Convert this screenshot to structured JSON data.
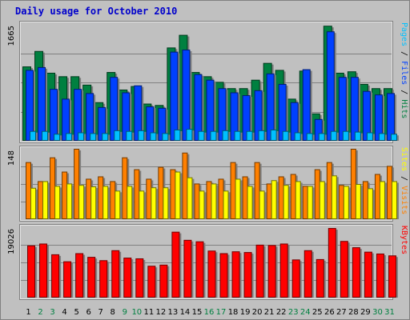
{
  "chart_data": {
    "type": "bar",
    "title": "Daily usage for October 2010",
    "categories": [
      "1",
      "2",
      "3",
      "4",
      "5",
      "6",
      "7",
      "8",
      "9",
      "10",
      "11",
      "12",
      "13",
      "14",
      "15",
      "16",
      "17",
      "18",
      "19",
      "20",
      "21",
      "22",
      "23",
      "24",
      "25",
      "26",
      "27",
      "28",
      "29",
      "30",
      "31"
    ],
    "weekend_days": [
      "2",
      "3",
      "9",
      "10",
      "16",
      "17",
      "23",
      "24",
      "30",
      "31"
    ],
    "panels": [
      {
        "name": "hits-files-pages",
        "max_label": "1665",
        "ylim": [
          0,
          1665
        ],
        "legend": [
          "Pages",
          "Files",
          "Hits"
        ],
        "series": [
          {
            "name": "Hits",
            "color": "#008040",
            "values": [
              1060,
              1280,
              970,
              920,
              920,
              800,
              550,
              980,
              730,
              780,
              530,
              510,
              1330,
              1510,
              980,
              920,
              840,
              750,
              750,
              870,
              1110,
              1010,
              600,
              1000,
              390,
              1640,
              970,
              990,
              810,
              750,
              750
            ]
          },
          {
            "name": "Files",
            "color": "#0040ff",
            "values": [
              1010,
              1050,
              740,
              600,
              740,
              680,
              480,
              910,
              690,
              790,
              490,
              470,
              1270,
              1300,
              950,
              870,
              750,
              690,
              650,
              720,
              960,
              810,
              550,
              1020,
              310,
              1560,
              910,
              910,
              710,
              660,
              680
            ]
          },
          {
            "name": "Pages",
            "color": "#00c0ff",
            "values": [
              140,
              140,
              100,
              110,
              120,
              110,
              110,
              150,
              140,
              150,
              120,
              110,
              160,
              170,
              140,
              140,
              150,
              140,
              140,
              150,
              160,
              140,
              120,
              110,
              110,
              140,
              140,
              130,
              120,
              110,
              100
            ]
          }
        ]
      },
      {
        "name": "visits-sites",
        "max_label": "148",
        "ylim": [
          0,
          148
        ],
        "legend": [
          "Sites",
          "Visits"
        ],
        "series": [
          {
            "name": "Visits",
            "color": "#ff8000",
            "values": [
              120,
              80,
              130,
              100,
              148,
              85,
              90,
              80,
              130,
              105,
              85,
              110,
              105,
              140,
              75,
              80,
              85,
              120,
              90,
              120,
              75,
              90,
              95,
              70,
              105,
              120,
              72,
              148,
              80,
              95,
              112
            ]
          },
          {
            "name": "Sites",
            "color": "#ffff00",
            "values": [
              66,
              80,
              70,
              75,
              72,
              69,
              70,
              60,
              70,
              60,
              67,
              67,
              100,
              88,
              60,
              75,
              60,
              85,
              70,
              60,
              82,
              72,
              80,
              70,
              80,
              92,
              70,
              74,
              65,
              80,
              80
            ]
          }
        ]
      },
      {
        "name": "kbytes",
        "max_label": "19026",
        "ylim": [
          0,
          19026
        ],
        "legend": [
          "KBytes"
        ],
        "series": [
          {
            "name": "KBytes",
            "color": "#ff0000",
            "values": [
              14100,
              14600,
              11700,
              9800,
              12000,
              11000,
              10100,
              12800,
              10800,
              10600,
              8600,
              8900,
              17800,
              15600,
              15200,
              12700,
              12000,
              12500,
              12300,
              14300,
              14200,
              14600,
              10300,
              12800,
              10400,
              18800,
              15300,
              13600,
              12400,
              11900,
              11400
            ]
          }
        ]
      }
    ],
    "colors": {
      "background": "#c0c0c0",
      "plot": "#c0c0c0",
      "gridline": "#808080",
      "weekday_label": "#000000",
      "weekend_label": "#008040"
    }
  }
}
